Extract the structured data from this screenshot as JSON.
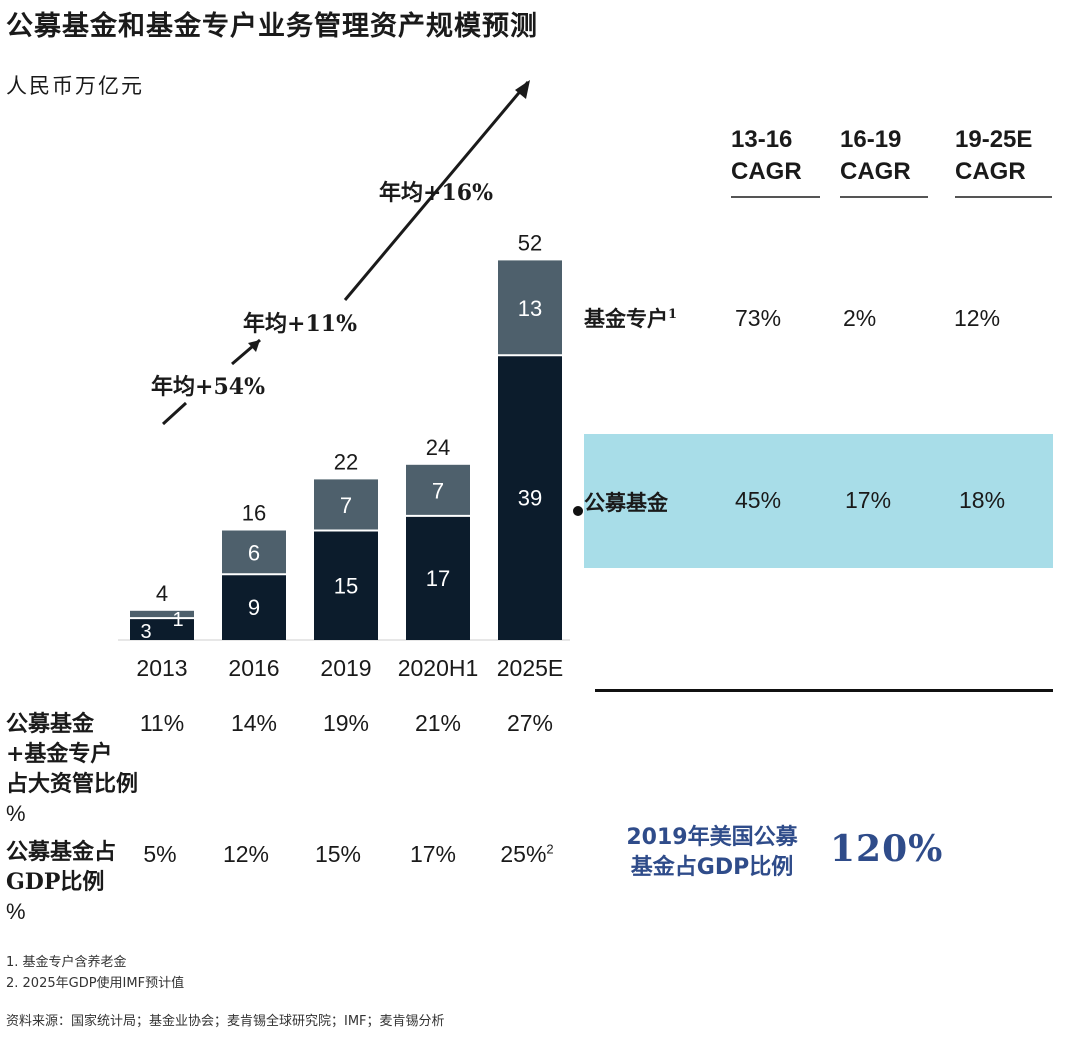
{
  "title": "公募基金和基金专户业务管理资产规模预测",
  "unit": "人民币万亿元",
  "colors": {
    "public_fund": "#0c1c2c",
    "special_account": "#4e606c",
    "highlight": "#a8dde8",
    "us_text": "#2f4c8a"
  },
  "chart_data": {
    "type": "bar",
    "stacked": true,
    "categories": [
      "2013",
      "2016",
      "2019",
      "2020H1",
      "2025E"
    ],
    "series": [
      {
        "name": "公募基金",
        "values": [
          3,
          9,
          15,
          17,
          39
        ]
      },
      {
        "name": "基金专户",
        "values": [
          1,
          6,
          7,
          7,
          13
        ]
      }
    ],
    "totals": [
      4,
      16,
      22,
      24,
      52
    ],
    "ylim": [
      0,
      52
    ],
    "growth_labels": [
      "年均+54%",
      "年均+11%",
      "年均+16%"
    ]
  },
  "cagr": {
    "headers": [
      "13-16\nCAGR",
      "16-19\nCAGR",
      "19-25E\nCAGR"
    ],
    "rows": [
      {
        "label": "基金专户",
        "sup": "1",
        "values": [
          "73%",
          "2%",
          "12%"
        ]
      },
      {
        "label": "公募基金",
        "sup": "",
        "values": [
          "45%",
          "17%",
          "18%"
        ]
      }
    ]
  },
  "table": {
    "rows": [
      {
        "label_lines": [
          "公募基金",
          "+基金专户",
          "占大资管比例"
        ],
        "unit": "%",
        "values": [
          "11%",
          "14%",
          "19%",
          "21%",
          "27%"
        ],
        "last_sup": ""
      },
      {
        "label_lines": [
          "公募基金占",
          "GDP比例"
        ],
        "unit": "%",
        "values": [
          "5%",
          "12%",
          "15%",
          "17%",
          "25%"
        ],
        "last_sup": "2"
      }
    ]
  },
  "us": {
    "label_lines": [
      "2019年美国公募",
      "基金占GDP比例"
    ],
    "value": "120%"
  },
  "notes": [
    "1.   基金专户含养老金",
    "2.   2025年GDP使用IMF预计值"
  ],
  "source": "资料来源：国家统计局；基金业协会；麦肯锡全球研究院；IMF；麦肯锡分析"
}
